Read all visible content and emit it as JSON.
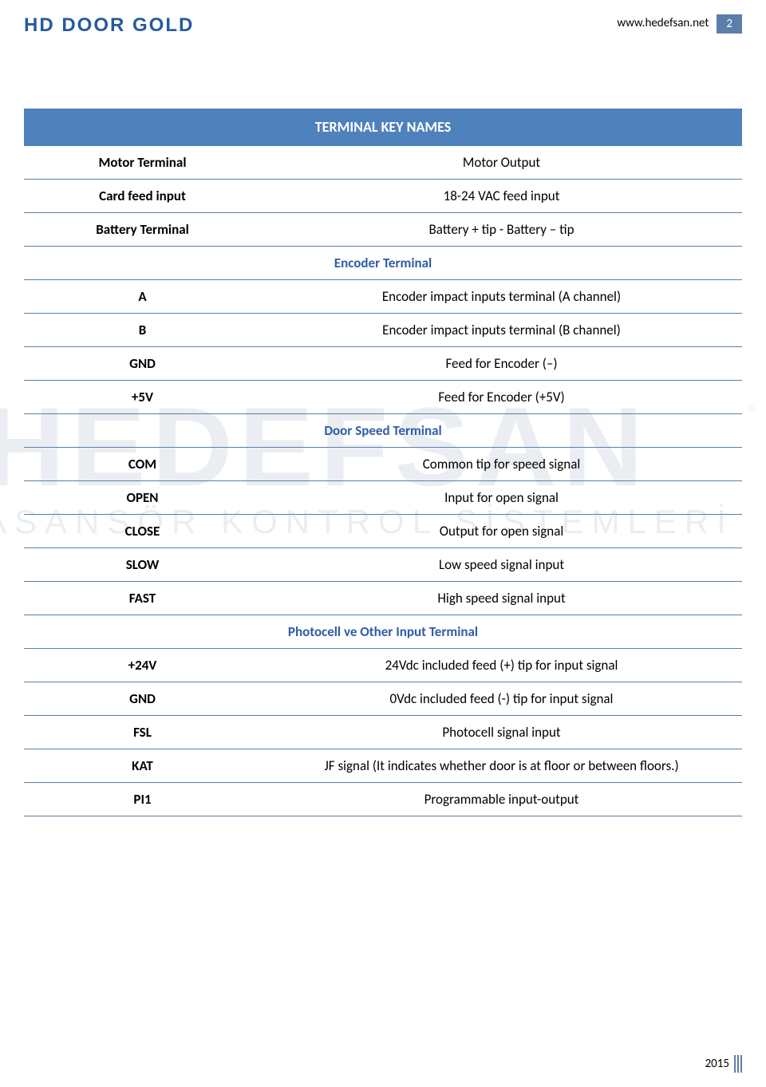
{
  "header": {
    "logo_text": "HD DOOR GOLD",
    "url": "www.hedefsan.net",
    "page_number": "2"
  },
  "watermark": {
    "line1": "HEDEFSAN",
    "line2": "ASANSÖR KONTROL SİSTEMLERİ",
    "reg": "®"
  },
  "table": {
    "title": "TERMINAL KEY NAMES",
    "sections": [
      {
        "rows": [
          {
            "left": "Motor Terminal",
            "right": "Motor Output"
          },
          {
            "left": "Card feed input",
            "right": "18-24 VAC feed input"
          },
          {
            "left": "Battery Terminal",
            "right": "Battery + tip - Battery – tip"
          }
        ]
      },
      {
        "header": "Encoder Terminal",
        "rows": [
          {
            "left": "A",
            "right": "Encoder impact inputs terminal (A channel)"
          },
          {
            "left": "B",
            "right": "Encoder impact inputs terminal (B channel)"
          },
          {
            "left": "GND",
            "right": "Feed for Encoder (–)"
          },
          {
            "left": "+5V",
            "right": "Feed for Encoder (+5V)"
          }
        ]
      },
      {
        "header": "Door Speed Terminal",
        "rows": [
          {
            "left": "COM",
            "right": "Common tip for speed signal"
          },
          {
            "left": "OPEN",
            "right": "Input for open signal"
          },
          {
            "left": "CLOSE",
            "right": "Output for open signal"
          },
          {
            "left": "SLOW",
            "right": "Low speed signal input"
          },
          {
            "left": "FAST",
            "right": "High speed signal input"
          }
        ]
      },
      {
        "header": "Photocell ve Other Input Terminal",
        "rows": [
          {
            "left": "+24V",
            "right": "24Vdc included feed (+) tip for input signal"
          },
          {
            "left": "GND",
            "right": "0Vdc included feed (-) tip for input signal"
          },
          {
            "left": "FSL",
            "right": "Photocell signal input"
          },
          {
            "left": "KAT",
            "right": "JF signal (It indicates whether door is at floor or between floors.)"
          },
          {
            "left": "PI1",
            "right": "Programmable input-output"
          }
        ]
      }
    ]
  },
  "footer": {
    "year": "2015"
  },
  "colors": {
    "header_blue": "#4f81bd",
    "border_blue": "#5a7fa8",
    "section_text": "#2f5da8",
    "logo_blue": "#265a9e"
  }
}
